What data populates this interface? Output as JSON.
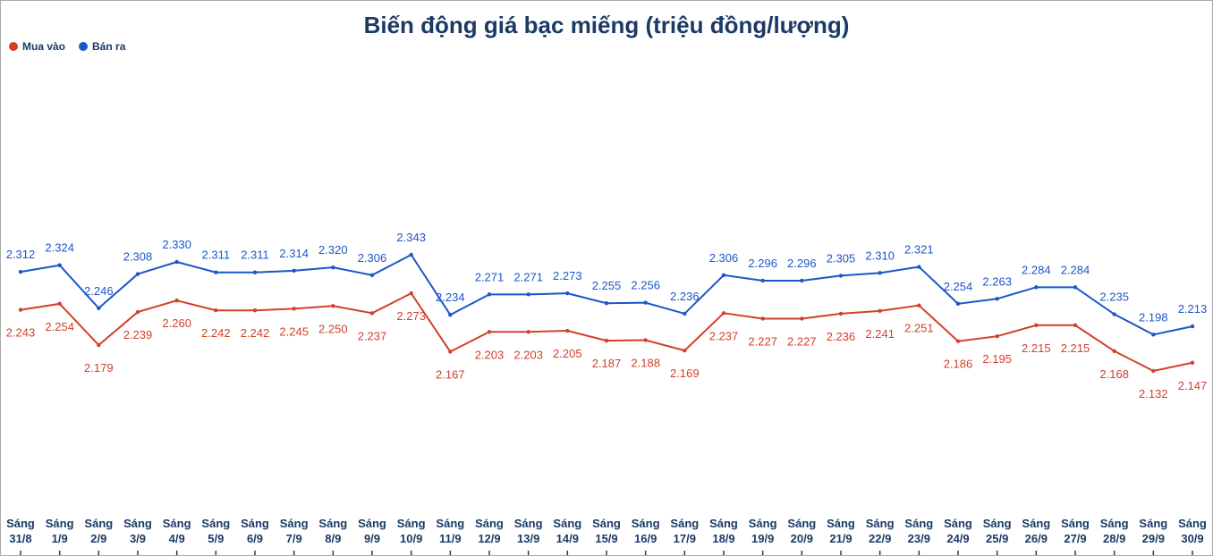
{
  "chart_data": {
    "type": "line",
    "title": "Biến động giá bạc miếng (triệu đồng/lượng)",
    "categories": [
      "Sáng 31/8",
      "Sáng 1/9",
      "Sáng 2/9",
      "Sáng 3/9",
      "Sáng 4/9",
      "Sáng 5/9",
      "Sáng 6/9",
      "Sáng 7/9",
      "Sáng 8/9",
      "Sáng 9/9",
      "Sáng 10/9",
      "Sáng 11/9",
      "Sáng 12/9",
      "Sáng 13/9",
      "Sáng 14/9",
      "Sáng 15/9",
      "Sáng 16/9",
      "Sáng 17/9",
      "Sáng 18/9",
      "Sáng 19/9",
      "Sáng 20/9",
      "Sáng 21/9",
      "Sáng 22/9",
      "Sáng 23/9",
      "Sáng 24/9",
      "Sáng 25/9",
      "Sáng 26/9",
      "Sáng 27/9",
      "Sáng 28/9",
      "Sáng 29/9",
      "Sáng 30/9"
    ],
    "series": [
      {
        "name": "Mua vào",
        "color": "#d2402a",
        "values": [
          2.243,
          2.254,
          2.179,
          2.239,
          2.26,
          2.242,
          2.242,
          2.245,
          2.25,
          2.237,
          2.273,
          2.167,
          2.203,
          2.203,
          2.205,
          2.187,
          2.188,
          2.169,
          2.237,
          2.227,
          2.227,
          2.236,
          2.241,
          2.251,
          2.186,
          2.195,
          2.215,
          2.215,
          2.168,
          2.132,
          2.147
        ],
        "value_labels": [
          "2.243",
          "2.254",
          "2.179",
          "2.239",
          "2.260",
          "2.242",
          "2.242",
          "2.245",
          "2.250",
          "2.237",
          "2.273",
          "2.167",
          "2.203",
          "2.203",
          "2.205",
          "2.187",
          "2.188",
          "2.169",
          "2.237",
          "2.227",
          "2.227",
          "2.236",
          "2.241",
          "2.251",
          "2.186",
          "2.195",
          "2.215",
          "2.215",
          "2.168",
          "2.132",
          "2.147"
        ]
      },
      {
        "name": "Bán ra",
        "color": "#1a56c8",
        "values": [
          2.312,
          2.324,
          2.246,
          2.308,
          2.33,
          2.311,
          2.311,
          2.314,
          2.32,
          2.306,
          2.343,
          2.234,
          2.271,
          2.271,
          2.273,
          2.255,
          2.256,
          2.236,
          2.306,
          2.296,
          2.296,
          2.305,
          2.31,
          2.321,
          2.254,
          2.263,
          2.284,
          2.284,
          2.235,
          2.198,
          2.213
        ],
        "value_labels": [
          "2.312",
          "2.324",
          "2.246",
          "2.308",
          "2.330",
          "2.311",
          "2.311",
          "2.314",
          "2.320",
          "2.306",
          "2.343",
          "2.234",
          "2.271",
          "2.271",
          "2.273",
          "2.255",
          "2.256",
          "2.236",
          "2.306",
          "2.296",
          "2.296",
          "2.305",
          "2.310",
          "2.321",
          "2.254",
          "2.263",
          "2.284",
          "2.284",
          "2.235",
          "2.198",
          "2.213"
        ]
      }
    ]
  }
}
